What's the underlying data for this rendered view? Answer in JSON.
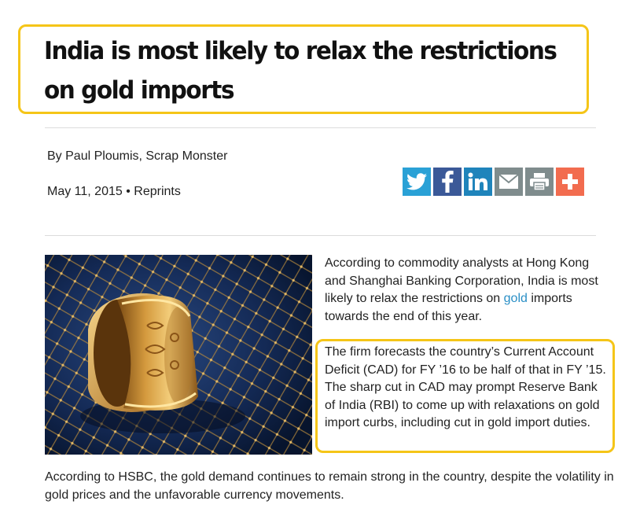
{
  "article": {
    "headline": "India is most likely to relax the restrictions on gold imports",
    "byline": "By Paul Ploumis, Scrap Monster",
    "date": "May 11, 2015",
    "separator": "•",
    "reprints_label": "Reprints"
  },
  "share_buttons": [
    {
      "name": "twitter",
      "icon": "twitter-icon",
      "color": "#2aa1d6"
    },
    {
      "name": "facebook",
      "icon": "facebook-icon",
      "color": "#3b5998"
    },
    {
      "name": "linkedin",
      "icon": "linkedin-icon",
      "color": "#1f84bb"
    },
    {
      "name": "email",
      "icon": "envelope-icon",
      "color": "#7f8c8d"
    },
    {
      "name": "print",
      "icon": "printer-icon",
      "color": "#7f8c8d"
    },
    {
      "name": "more",
      "icon": "plus-icon",
      "color": "#f26c4f"
    }
  ],
  "body": {
    "p1_before": "According to commodity analysts at Hong Kong and Shanghai Banking Corporation, India is most likely to relax the restrictions on ",
    "p1_link": "gold",
    "p1_after": " imports towards the end of this year.",
    "p2": "The firm forecasts the country’s Current Account Deficit (CAD) for FY ’16 to be half of that in FY ’15. The sharp cut in CAD may prompt Reserve Bank of India (RBI) to come up with relaxations on gold import curbs, including cut in gold import duties.",
    "p3": "According to HSBC, the gold demand continues to remain strong in the country, despite the volatility in gold prices and the unfavorable currency movements."
  },
  "colors": {
    "highlight": "#f5c518",
    "link": "#2a8fc6"
  }
}
